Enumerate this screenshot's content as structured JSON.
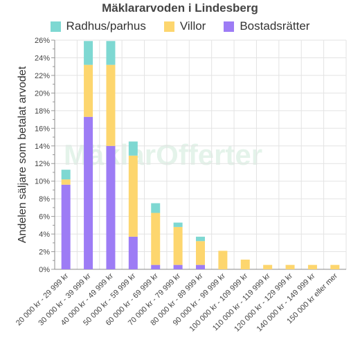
{
  "watermark": "MäklarOfferter",
  "chart_data": {
    "type": "bar",
    "stacked": true,
    "title": "Mäklararvoden i Lindesberg",
    "ylabel": "Andelen säljare som betalat arvodet",
    "xlabel": "",
    "ylim": [
      0,
      26
    ],
    "yticks": [
      "0%",
      "2%",
      "4%",
      "6%",
      "8%",
      "10%",
      "12%",
      "14%",
      "16%",
      "18%",
      "20%",
      "22%",
      "24%",
      "26%"
    ],
    "grid": true,
    "legend_position": "top",
    "categories": [
      "20 000 kr - 29 999 kr",
      "30 000 kr - 39 999 kr",
      "40 000 kr - 49 999 kr",
      "50 000 kr - 59 999 kr",
      "60 000 kr - 69 999 kr",
      "70 000 kr - 79 999 kr",
      "80 000 kr - 89 999 kr",
      "90 000 kr - 99 999 kr",
      "100 000 kr - 109 999 kr",
      "110 000 kr - 119 999 kr",
      "120 000 kr - 129 999 kr",
      "140 000 kr - 149 999 kr",
      "150 000 kr eller mer"
    ],
    "series": [
      {
        "name": "Bostadsrätter",
        "color": "#9d7cf5",
        "values": [
          9.6,
          17.3,
          14.0,
          3.7,
          0.5,
          0.5,
          0.5,
          0,
          0,
          0,
          0,
          0,
          0
        ]
      },
      {
        "name": "Villor",
        "color": "#fdd66e",
        "values": [
          0.6,
          5.9,
          9.2,
          9.2,
          5.9,
          4.3,
          2.7,
          2.1,
          1.1,
          0.5,
          0.5,
          0.5,
          0.5
        ]
      },
      {
        "name": "Radhus/parhus",
        "color": "#7ed8d2",
        "values": [
          1.1,
          2.7,
          2.7,
          1.6,
          1.1,
          0.5,
          0.5,
          0,
          0,
          0,
          0,
          0,
          0
        ]
      }
    ],
    "legend_order": [
      "Radhus/parhus",
      "Villor",
      "Bostadsrätter"
    ]
  }
}
